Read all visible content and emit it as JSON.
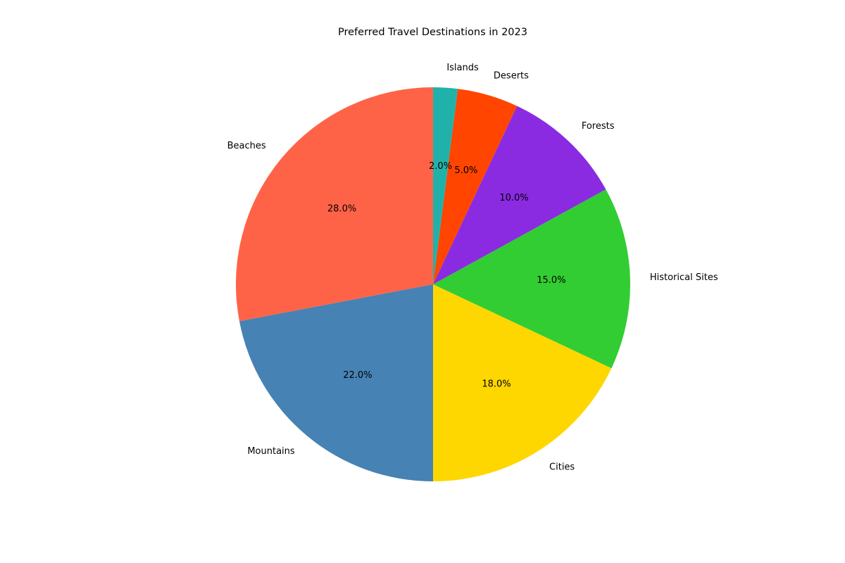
{
  "chart_data": {
    "type": "pie",
    "title": "Preferred Travel Destinations in 2023",
    "start_angle_deg": 90,
    "direction": "counterclockwise",
    "slices": [
      {
        "label": "Beaches",
        "value": 28.0,
        "pct_text": "28.0%",
        "color": "#FF6347"
      },
      {
        "label": "Mountains",
        "value": 22.0,
        "pct_text": "22.0%",
        "color": "#4682B4"
      },
      {
        "label": "Cities",
        "value": 18.0,
        "pct_text": "18.0%",
        "color": "#FFD700"
      },
      {
        "label": "Historical Sites",
        "value": 15.0,
        "pct_text": "15.0%",
        "color": "#32CD32"
      },
      {
        "label": "Forests",
        "value": 10.0,
        "pct_text": "10.0%",
        "color": "#8A2BE2"
      },
      {
        "label": "Deserts",
        "value": 5.0,
        "pct_text": "5.0%",
        "color": "#FF4500"
      },
      {
        "label": "Islands",
        "value": 2.0,
        "pct_text": "2.0%",
        "color": "#20B2AA"
      }
    ]
  }
}
